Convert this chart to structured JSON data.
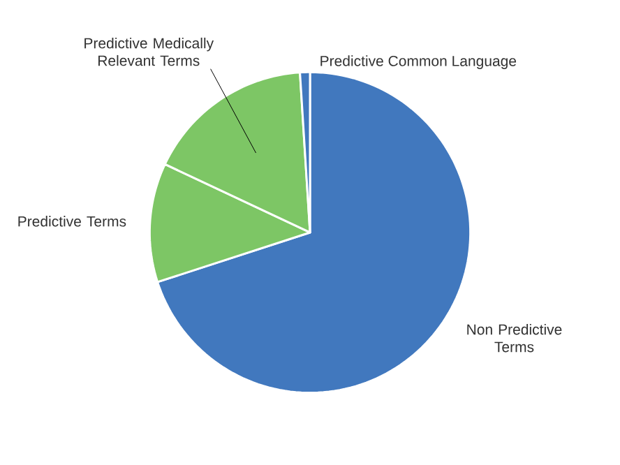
{
  "chart_data": {
    "type": "pie",
    "categories": [
      "Non Predictive Terms",
      "Predictive Terms",
      "Predictive Medically Relevant Terms",
      "Predictive Common Language"
    ],
    "values": [
      70,
      12,
      17,
      1
    ],
    "colors": [
      "#4178be",
      "#7dc665",
      "#7dc665",
      "#4178be"
    ]
  }
}
